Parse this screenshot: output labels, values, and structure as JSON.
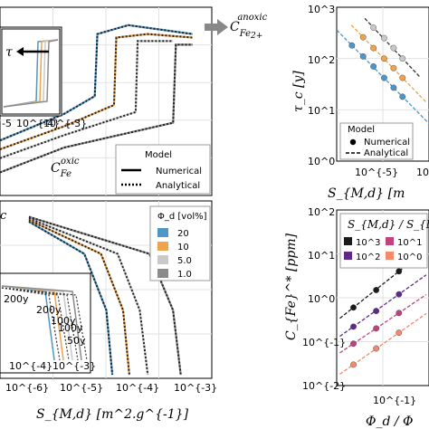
{
  "annotations": {
    "anoxic_label": "C_{Fe^{2+}}^{anoxic}",
    "oxic_label": "C_{Fe}^{oxic}",
    "tau_symbol": "τ",
    "mid_tail": "c",
    "years": [
      "200y",
      "200y",
      "100y",
      "100y",
      "50y"
    ]
  },
  "legend_model": {
    "title": "Model",
    "items": [
      {
        "label": "Numerical",
        "style": "solid"
      },
      {
        "label": "Analytical",
        "style": "dotted"
      }
    ]
  },
  "legend_phi": {
    "title": "Φ_d [vol%]",
    "items": [
      {
        "label": "20",
        "color": "#4f95c6"
      },
      {
        "label": "10",
        "color": "#f0a24c"
      },
      {
        "label": "5.0",
        "color": "#c9c9c9"
      },
      {
        "label": "1.0",
        "color": "#8a8a8a"
      }
    ]
  },
  "legend_tau": {
    "title": "Model",
    "items": [
      {
        "label": "Numerical",
        "style": "dot"
      },
      {
        "label": "Analytical",
        "style": "dashed"
      }
    ]
  },
  "legend_ratio": {
    "title": "S_{M,d} / S_{M,p}",
    "items": [
      {
        "label": "10^3",
        "color": "#1a1a1a"
      },
      {
        "label": "10^1",
        "color": "#c0427f"
      },
      {
        "label": "10^2",
        "color": "#5d2a8a"
      },
      {
        "label": "10^0",
        "color": "#f28a6b"
      }
    ]
  },
  "chart_data": [
    {
      "type": "line",
      "panel": "top-left",
      "xscale": "log",
      "xlim": [
        1e-06,
        0.002
      ],
      "series": [
        {
          "name": "20",
          "color": "#4f95c6",
          "x": [
            1e-06,
            1e-05,
            3e-05,
            3.3e-05,
            0.0001,
            0.001
          ],
          "y": [
            0.3,
            0.45,
            0.55,
            0.9,
            0.95,
            0.9
          ]
        },
        {
          "name": "10",
          "color": "#f0a24c",
          "x": [
            1e-06,
            1e-05,
            6e-05,
            6.5e-05,
            0.0002,
            0.001
          ],
          "y": [
            0.25,
            0.38,
            0.5,
            0.88,
            0.9,
            0.88
          ]
        },
        {
          "name": "5.0",
          "color": "#c9c9c9",
          "x": [
            1e-06,
            1e-05,
            0.00013,
            0.00014,
            0.0005
          ],
          "y": [
            0.2,
            0.33,
            0.46,
            0.86,
            0.86
          ]
        },
        {
          "name": "1.0",
          "color": "#8a8a8a",
          "x": [
            1e-06,
            1e-05,
            0.0005,
            0.00055,
            0.001
          ],
          "y": [
            0.12,
            0.26,
            0.4,
            0.84,
            0.84
          ]
        }
      ],
      "inset_ticks": [
        "-5",
        "10^{-4}",
        "10^{-3}"
      ]
    },
    {
      "type": "line",
      "panel": "bottom-left",
      "xscale": "log",
      "xlim": [
        3e-07,
        0.002
      ],
      "xlabel": "S_{M,d} [m^2.g^{-1}]",
      "x_ticks": [
        "10^{-6}",
        "10^{-5}",
        "10^{-4}",
        "10^{-3}"
      ],
      "series": [
        {
          "name": "20",
          "color": "#4f95c6",
          "x": [
            1e-06,
            1e-05,
            2.5e-05,
            3.2e-05
          ],
          "y": [
            0.95,
            0.75,
            0.4,
            0.0
          ]
        },
        {
          "name": "10",
          "color": "#f0a24c",
          "x": [
            1e-06,
            2e-05,
            5e-05,
            6.5e-05
          ],
          "y": [
            0.96,
            0.75,
            0.4,
            0.0
          ]
        },
        {
          "name": "5.0",
          "color": "#c9c9c9",
          "x": [
            1e-06,
            4e-05,
            0.0001,
            0.00014
          ],
          "y": [
            0.97,
            0.75,
            0.4,
            0.0
          ]
        },
        {
          "name": "1.0",
          "color": "#8a8a8a",
          "x": [
            1e-06,
            0.00015,
            0.0004,
            0.00055
          ],
          "y": [
            0.98,
            0.75,
            0.4,
            0.0
          ]
        }
      ],
      "inset_ticks": [
        "10^{-4}",
        "10^{-3}"
      ]
    },
    {
      "type": "scatter",
      "panel": "top-right",
      "xscale": "log",
      "yscale": "log",
      "ylabel": "τ_c [y]",
      "xlabel": "S_{M,d} [m",
      "ylim": [
        1,
        1000
      ],
      "y_ticks": [
        "10^0",
        "10^1",
        "10^2",
        "10^3"
      ],
      "x_ticks": [
        "10^{-5}",
        "10"
      ],
      "series": [
        {
          "name": "20",
          "color": "#4f95c6",
          "x": [
            3e-06,
            5e-06,
            8e-06,
            1.3e-05,
            2e-05,
            3e-05
          ],
          "y": [
            180,
            110,
            70,
            42,
            27,
            18
          ]
        },
        {
          "name": "10",
          "color": "#f0a24c",
          "x": [
            5e-06,
            8e-06,
            1.3e-05,
            2e-05,
            3e-05
          ],
          "y": [
            260,
            160,
            100,
            65,
            42
          ]
        },
        {
          "name": "5.0",
          "color": "#c9c9c9",
          "x": [
            8e-06,
            1.3e-05,
            2e-05,
            3e-05
          ],
          "y": [
            400,
            250,
            160,
            100
          ]
        }
      ]
    },
    {
      "type": "scatter",
      "panel": "bottom-right",
      "xscale": "log",
      "yscale": "log",
      "ylabel": "C_{Fe}^* [ppm]",
      "xlabel": "Φ_d / Φ",
      "ylim": [
        0.01,
        100
      ],
      "y_ticks": [
        "10^{-2}",
        "10^{-1}",
        "10^0",
        "10^1",
        "10^2"
      ],
      "x_ticks": [
        "10^{-1}"
      ],
      "series": [
        {
          "name": "10^3",
          "color": "#1a1a1a",
          "x": [
            0.05,
            0.1,
            0.2
          ],
          "y": [
            0.6,
            1.5,
            4.0
          ]
        },
        {
          "name": "10^2",
          "color": "#5d2a8a",
          "x": [
            0.05,
            0.1,
            0.2
          ],
          "y": [
            0.22,
            0.5,
            1.2
          ]
        },
        {
          "name": "10^1",
          "color": "#c0427f",
          "x": [
            0.05,
            0.1,
            0.2
          ],
          "y": [
            0.09,
            0.2,
            0.45
          ]
        },
        {
          "name": "10^0",
          "color": "#f28a6b",
          "x": [
            0.05,
            0.1,
            0.2
          ],
          "y": [
            0.03,
            0.07,
            0.16
          ]
        }
      ]
    }
  ]
}
